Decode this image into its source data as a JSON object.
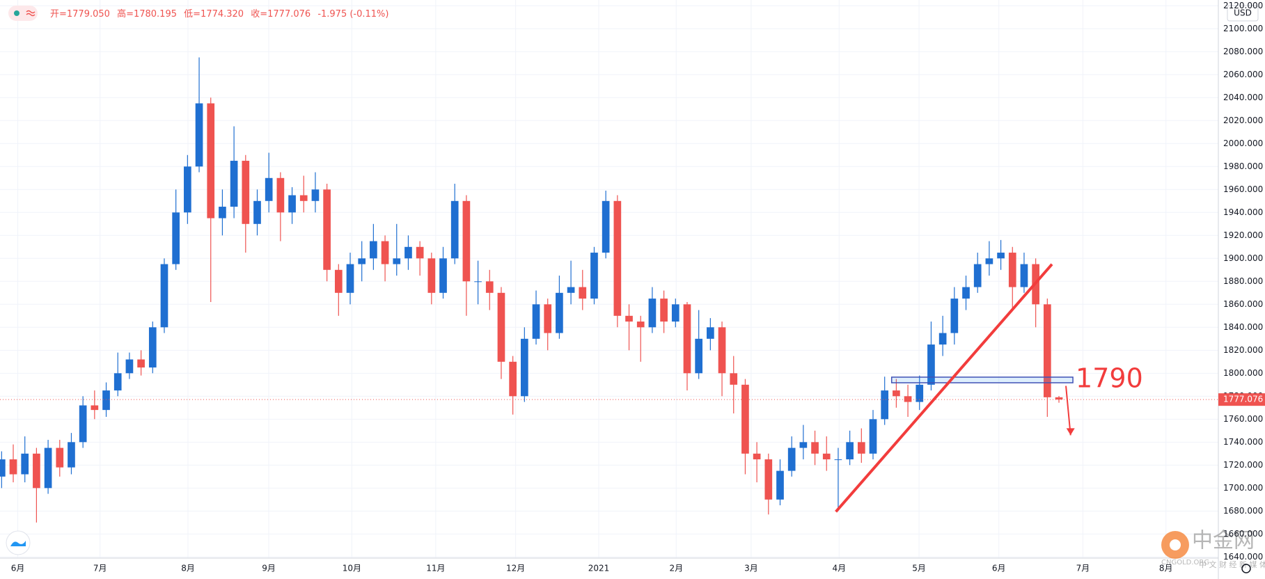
{
  "chart_data": {
    "type": "candlestick",
    "currency": "USD",
    "header": [
      "开=1779.050",
      "高=1780.195",
      "低=1774.320",
      "收=1777.076",
      "-1.975 (-0.11%)"
    ],
    "open": [
      1710,
      1725,
      1712,
      1730,
      1700,
      1735,
      1718,
      1740,
      1772,
      1768,
      1785,
      1800,
      1812,
      1805,
      1840,
      1895,
      1940,
      1980,
      2035,
      1935,
      1945,
      1985,
      1930,
      1950,
      1970,
      1940,
      1955,
      1950,
      1960,
      1890,
      1870,
      1895,
      1900,
      1915,
      1895,
      1900,
      1910,
      1900,
      1870,
      1900,
      1950,
      1880,
      1880,
      1870,
      1810,
      1780,
      1830,
      1860,
      1835,
      1870,
      1875,
      1865,
      1905,
      1950,
      1850,
      1845,
      1840,
      1865,
      1845,
      1860,
      1800,
      1830,
      1840,
      1800,
      1790,
      1730,
      1725,
      1690,
      1715,
      1735,
      1740,
      1730,
      1725,
      1725,
      1740,
      1730,
      1760,
      1785,
      1780,
      1775,
      1790,
      1825,
      1835,
      1865,
      1875,
      1895,
      1900,
      1905,
      1875,
      1895,
      1860,
      1779.05
    ],
    "high": [
      1732,
      1738,
      1745,
      1735,
      1742,
      1742,
      1748,
      1780,
      1785,
      1792,
      1818,
      1818,
      1820,
      1845,
      1900,
      1960,
      1990,
      2075,
      2040,
      1960,
      2015,
      1990,
      1960,
      1992,
      1975,
      1962,
      1972,
      1975,
      1965,
      1895,
      1905,
      1915,
      1930,
      1920,
      1930,
      1920,
      1915,
      1905,
      1910,
      1965,
      1955,
      1898,
      1890,
      1875,
      1815,
      1840,
      1872,
      1865,
      1885,
      1898,
      1890,
      1910,
      1959,
      1955,
      1860,
      1850,
      1875,
      1872,
      1865,
      1862,
      1855,
      1848,
      1845,
      1815,
      1795,
      1740,
      1730,
      1725,
      1745,
      1755,
      1750,
      1745,
      1735,
      1750,
      1752,
      1768,
      1797,
      1795,
      1790,
      1798,
      1845,
      1850,
      1875,
      1885,
      1905,
      1915,
      1916,
      1910,
      1905,
      1900,
      1865,
      1780.195
    ],
    "low": [
      1700,
      1705,
      1705,
      1670,
      1695,
      1710,
      1712,
      1735,
      1760,
      1762,
      1780,
      1795,
      1798,
      1800,
      1835,
      1890,
      1930,
      1975,
      1862,
      1920,
      1935,
      1905,
      1920,
      1940,
      1915,
      1930,
      1940,
      1940,
      1880,
      1850,
      1860,
      1880,
      1890,
      1880,
      1885,
      1890,
      1885,
      1860,
      1865,
      1895,
      1850,
      1860,
      1855,
      1795,
      1764,
      1775,
      1825,
      1820,
      1830,
      1860,
      1855,
      1860,
      1900,
      1840,
      1820,
      1810,
      1835,
      1835,
      1840,
      1785,
      1795,
      1820,
      1780,
      1765,
      1712,
      1705,
      1677,
      1685,
      1710,
      1725,
      1720,
      1715,
      1680,
      1720,
      1722,
      1725,
      1755,
      1770,
      1762,
      1768,
      1785,
      1815,
      1825,
      1855,
      1870,
      1885,
      1890,
      1855,
      1870,
      1840,
      1762,
      1774.32
    ],
    "close": [
      1725,
      1712,
      1730,
      1700,
      1735,
      1718,
      1740,
      1772,
      1768,
      1785,
      1800,
      1812,
      1805,
      1840,
      1895,
      1940,
      1980,
      2035,
      1935,
      1945,
      1985,
      1930,
      1950,
      1970,
      1940,
      1955,
      1950,
      1960,
      1890,
      1870,
      1895,
      1900,
      1915,
      1895,
      1900,
      1910,
      1900,
      1870,
      1900,
      1950,
      1880,
      1880,
      1870,
      1810,
      1780,
      1830,
      1860,
      1835,
      1870,
      1875,
      1865,
      1905,
      1950,
      1850,
      1845,
      1840,
      1865,
      1845,
      1860,
      1800,
      1830,
      1840,
      1800,
      1790,
      1730,
      1725,
      1690,
      1715,
      1735,
      1740,
      1730,
      1725,
      1725,
      1740,
      1730,
      1760,
      1785,
      1780,
      1775,
      1790,
      1825,
      1835,
      1865,
      1875,
      1895,
      1900,
      1905,
      1875,
      1895,
      1860,
      1779.051,
      1777.076
    ],
    "up_color": "#1f6fd1",
    "down_color": "#ef5350",
    "xlim": [
      -0.14,
      104.72
    ],
    "xticks": [
      {
        "value": 1.39,
        "label": "6月"
      },
      {
        "value": 8.47,
        "label": "7月"
      },
      {
        "value": 16.04,
        "label": "8月"
      },
      {
        "value": 22.99,
        "label": "9月"
      },
      {
        "value": 30.14,
        "label": "10月"
      },
      {
        "value": 37.36,
        "label": "11月"
      },
      {
        "value": 44.24,
        "label": "12月"
      },
      {
        "value": 51.39,
        "label": "2021"
      },
      {
        "value": 58.06,
        "label": "2月"
      },
      {
        "value": 64.51,
        "label": "3月"
      },
      {
        "value": 72.08,
        "label": "4月"
      },
      {
        "value": 78.96,
        "label": "5月"
      },
      {
        "value": 85.83,
        "label": "6月"
      },
      {
        "value": 93.06,
        "label": "7月"
      },
      {
        "value": 100.21,
        "label": "8月"
      }
    ],
    "ylim": [
      1639,
      2125
    ],
    "yticks": [
      {
        "value": 1640,
        "label": "1640.000"
      },
      {
        "value": 1660,
        "label": "1660.000"
      },
      {
        "value": 1680,
        "label": "1680.000"
      },
      {
        "value": 1700,
        "label": "1700.000"
      },
      {
        "value": 1720,
        "label": "1720.000"
      },
      {
        "value": 1740,
        "label": "1740.000"
      },
      {
        "value": 1760,
        "label": "1760.000"
      },
      {
        "value": 1780,
        "label": "1780.000"
      },
      {
        "value": 1800,
        "label": "1800.000"
      },
      {
        "value": 1820,
        "label": "1820.000"
      },
      {
        "value": 1840,
        "label": "1840.000"
      },
      {
        "value": 1860,
        "label": "1860.000"
      },
      {
        "value": 1880,
        "label": "1880.000"
      },
      {
        "value": 1900,
        "label": "1900.000"
      },
      {
        "value": 1920,
        "label": "1920.000"
      },
      {
        "value": 1940,
        "label": "1940.000"
      },
      {
        "value": 1960,
        "label": "1960.000"
      },
      {
        "value": 1980,
        "label": "1980.000"
      },
      {
        "value": 2000,
        "label": "2000.000"
      },
      {
        "value": 2020,
        "label": "2020.000"
      },
      {
        "value": 2040,
        "label": "2040.000"
      },
      {
        "value": 2060,
        "label": "2060.000"
      },
      {
        "value": 2080,
        "label": "2080.000"
      },
      {
        "value": 2100,
        "label": "2100.000"
      },
      {
        "value": 2120,
        "label": "2120.000"
      }
    ],
    "grid": true,
    "last_price": 1777.076,
    "annotation_text": "1790",
    "annotation_color": "#f23c3c",
    "zone": {
      "x": [
        76.6,
        92.2
      ],
      "y": [
        1791.7,
        1796.6
      ]
    },
    "trendline": {
      "x": [
        71.8,
        90.4
      ],
      "y": [
        1679.4,
        1894.9
      ]
    },
    "arrow": {
      "x": [
        91.6,
        92.0
      ],
      "y": [
        1789,
        1746
      ]
    },
    "watermark": {
      "name": "中金网",
      "site": "CNGOLD.ORG",
      "slogan": "中 文 财 经 新 媒 体"
    }
  }
}
